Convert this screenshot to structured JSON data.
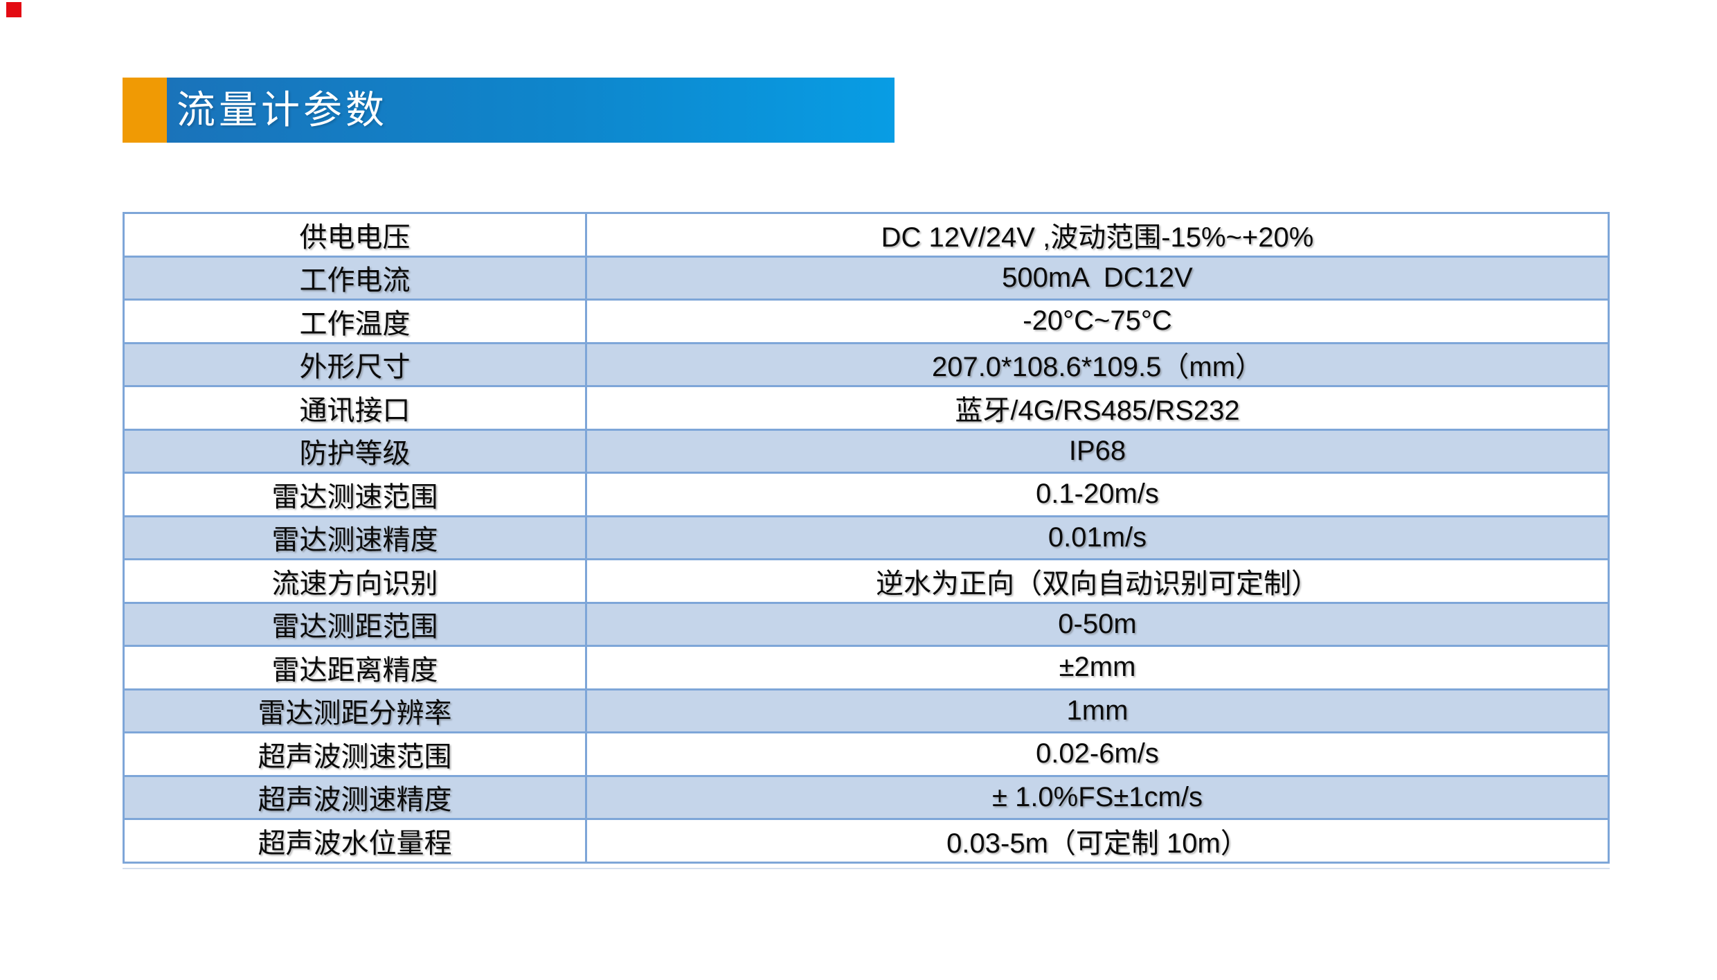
{
  "header": {
    "title": "流量计参数",
    "accent_color": "#F09A04",
    "gradient_start": "#1A73BA",
    "gradient_end": "#089DE4",
    "text_color": "#FFFFFF"
  },
  "decor": {
    "corner_mark_color": "#E30B13"
  },
  "table": {
    "border_color": "#7EA6D8",
    "stripe_color": "#C5D5EA",
    "row_white_color": "#FFFFFF",
    "text_color": "#0B0B0B",
    "rows": [
      {
        "label": "供电电压",
        "value": "DC 12V/24V ,波动范围-15%~+20%"
      },
      {
        "label": "工作电流",
        "value": "500mA  DC12V"
      },
      {
        "label": "工作温度",
        "value": "-20°C~75°C"
      },
      {
        "label": "外形尺寸",
        "value": "207.0*108.6*109.5（mm）"
      },
      {
        "label": "通讯接口",
        "value": "蓝牙/4G/RS485/RS232"
      },
      {
        "label": "防护等级",
        "value": "IP68"
      },
      {
        "label": "雷达测速范围",
        "value": "0.1-20m/s"
      },
      {
        "label": "雷达测速精度",
        "value": "0.01m/s"
      },
      {
        "label": "流速方向识别",
        "value": "逆水为正向（双向自动识别可定制）"
      },
      {
        "label": "雷达测距范围",
        "value": "0-50m"
      },
      {
        "label": "雷达距离精度",
        "value": "±2mm"
      },
      {
        "label": "雷达测距分辨率",
        "value": "1mm"
      },
      {
        "label": "超声波测速范围",
        "value": "0.02-6m/s"
      },
      {
        "label": "超声波测速精度",
        "value": "± 1.0%FS±1cm/s"
      },
      {
        "label": "超声波水位量程",
        "value": "0.03-5m（可定制 10m）"
      }
    ]
  }
}
